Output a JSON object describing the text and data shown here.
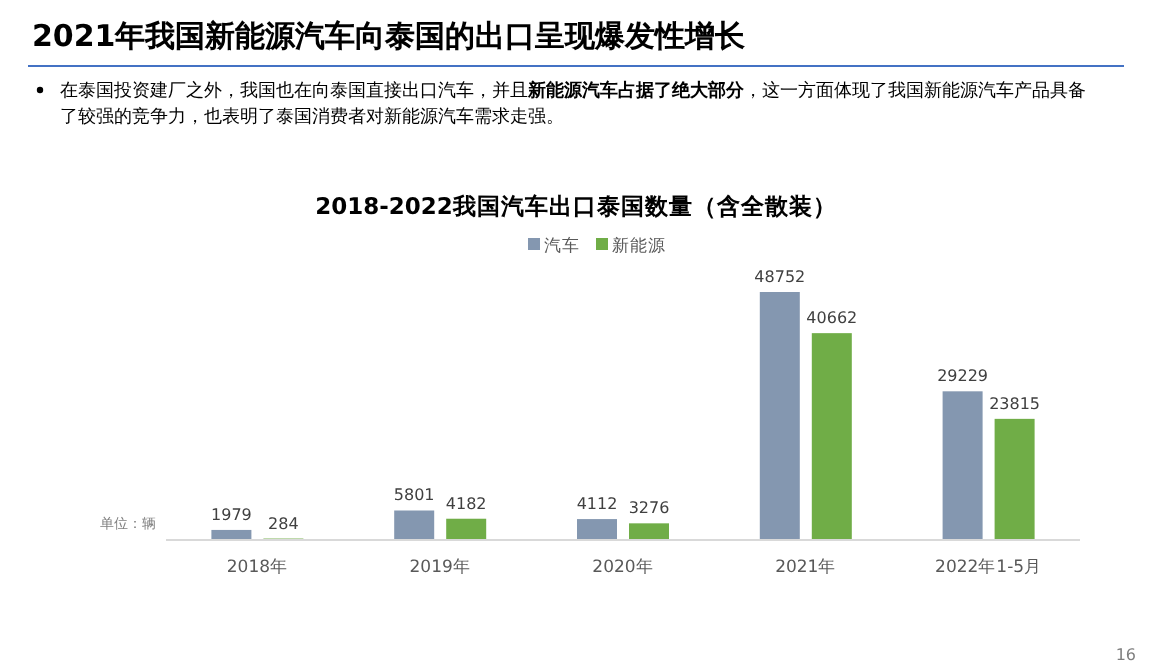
{
  "chart_data": {
    "type": "bar",
    "title": "2021年我国新能源汽车向泰国的出口呈现爆发性增长",
    "subtitle": "2018-2022我国汽车出口泰国数量（含全散装）",
    "categories": [
      "2018年",
      "2019年",
      "2020年",
      "2021年",
      "2022年1-5月"
    ],
    "series": [
      {
        "name": "汽车",
        "color": "#8497b0",
        "values": [
          1979,
          5801,
          4112,
          48752,
          29229
        ]
      },
      {
        "name": "新能源",
        "color": "#70ad47",
        "values": [
          284,
          4182,
          3276,
          40662,
          23815
        ]
      }
    ],
    "data_labels": true,
    "legend": "top",
    "annotations": [
      "在泰国投资建厂之外，我国也在向泰国直接出口汽车，并且**新能源汽车占据了绝大部分**，这一方面体现了我国新能源汽车产品具备了较强的竞争力，也表明了泰国消费者对新能源汽车需求走强。",
      "单位：辆",
      "16"
    ]
  }
}
